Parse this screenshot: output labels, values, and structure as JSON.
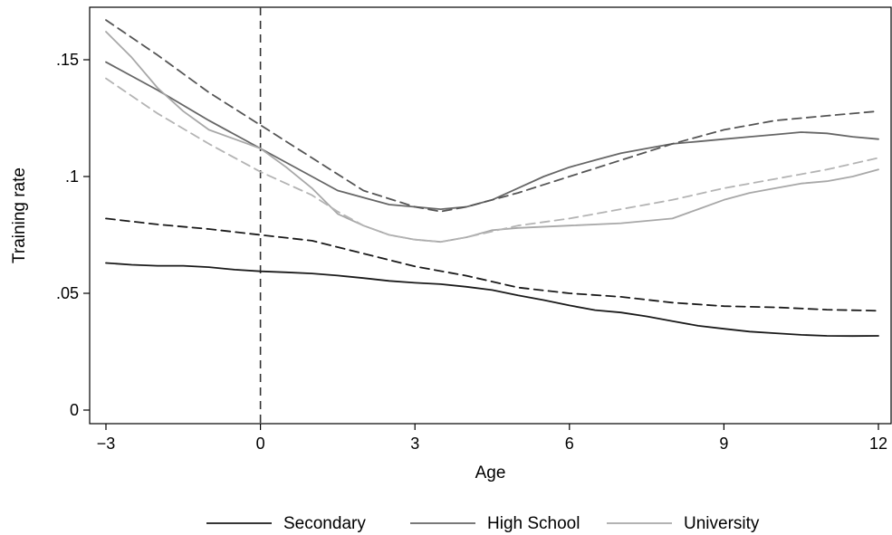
{
  "chart_data": {
    "type": "line",
    "xlabel": "Age",
    "ylabel": "Training rate",
    "xlim": [
      -3,
      12
    ],
    "ylim": [
      0,
      0.17
    ],
    "xticks": [
      -3,
      0,
      3,
      6,
      9,
      12
    ],
    "xtick_labels": [
      "−3",
      "0",
      "3",
      "6",
      "9",
      "12"
    ],
    "yticks": [
      0,
      0.05,
      0.1,
      0.15
    ],
    "ytick_labels": [
      "0",
      ".05",
      ".1",
      ".15"
    ],
    "vline_x": 0,
    "grid": false,
    "legend_position": "bottom",
    "legend": [
      "Secondary",
      "High School",
      "University"
    ],
    "series": [
      {
        "name": "Secondary",
        "color": "#1a1a1a",
        "dash": "solid",
        "x": [
          -3,
          -2.5,
          -2,
          -1.5,
          -1,
          -0.5,
          0,
          0.5,
          1,
          1.5,
          2,
          2.5,
          3,
          3.5,
          4,
          4.5,
          5,
          5.5,
          6,
          6.5,
          7,
          7.5,
          8,
          8.5,
          9,
          9.5,
          10,
          10.5,
          11,
          11.5,
          12
        ],
        "y": [
          0.063,
          0.0622,
          0.0618,
          0.0618,
          0.0612,
          0.0601,
          0.0594,
          0.059,
          0.0585,
          0.0576,
          0.0565,
          0.0553,
          0.0545,
          0.0539,
          0.0528,
          0.0514,
          0.0491,
          0.0471,
          0.0448,
          0.0428,
          0.0418,
          0.0401,
          0.0381,
          0.0361,
          0.0348,
          0.0336,
          0.0329,
          0.0322,
          0.0318,
          0.0317,
          0.0318
        ]
      },
      {
        "name": "Secondary (upper bound)",
        "color": "#1a1a1a",
        "dash": "dashed",
        "x": [
          -3,
          -2,
          -1,
          0,
          1,
          2,
          3,
          4,
          5,
          6,
          7,
          8,
          9,
          10,
          11,
          12
        ],
        "y": [
          0.082,
          0.0795,
          0.0775,
          0.075,
          0.0725,
          0.067,
          0.0615,
          0.0575,
          0.0525,
          0.05,
          0.0485,
          0.046,
          0.0445,
          0.044,
          0.043,
          0.0425
        ]
      },
      {
        "name": "High School",
        "color": "#666666",
        "dash": "solid",
        "x": [
          -3,
          -2,
          -1,
          0,
          0.5,
          1,
          1.5,
          2,
          2.5,
          3,
          3.5,
          4,
          4.5,
          5,
          5.5,
          6,
          6.5,
          7,
          7.5,
          8,
          8.5,
          9,
          9.5,
          10,
          10.5,
          11,
          11.5,
          12
        ],
        "y": [
          0.149,
          0.137,
          0.124,
          0.112,
          0.106,
          0.1,
          0.094,
          0.091,
          0.088,
          0.087,
          0.086,
          0.087,
          0.09,
          0.095,
          0.1,
          0.104,
          0.107,
          0.11,
          0.112,
          0.114,
          0.115,
          0.116,
          0.117,
          0.118,
          0.119,
          0.1185,
          0.117,
          0.116
        ]
      },
      {
        "name": "High School (upper bound)",
        "color": "#555555",
        "dash": "dashed",
        "x": [
          -3,
          -2,
          -1,
          0,
          1,
          2,
          3,
          3.5,
          4,
          5,
          6,
          7,
          8,
          9,
          10,
          11,
          12
        ],
        "y": [
          0.167,
          0.152,
          0.136,
          0.122,
          0.108,
          0.094,
          0.087,
          0.085,
          0.087,
          0.093,
          0.1,
          0.107,
          0.114,
          0.12,
          0.124,
          0.126,
          0.128
        ]
      },
      {
        "name": "University",
        "color": "#a8a8a8",
        "dash": "solid",
        "x": [
          -3,
          -2.5,
          -2,
          -1.5,
          -1,
          -0.5,
          0,
          0.5,
          1,
          1.5,
          2,
          2.5,
          3,
          3.5,
          4,
          4.5,
          5,
          6,
          7,
          8,
          8.5,
          9,
          9.5,
          10,
          10.5,
          11,
          11.5,
          12
        ],
        "y": [
          0.162,
          0.151,
          0.138,
          0.128,
          0.12,
          0.116,
          0.112,
          0.104,
          0.095,
          0.084,
          0.079,
          0.075,
          0.073,
          0.072,
          0.074,
          0.077,
          0.078,
          0.079,
          0.08,
          0.082,
          0.086,
          0.09,
          0.093,
          0.095,
          0.097,
          0.098,
          0.1,
          0.103
        ]
      },
      {
        "name": "University (upper bound)",
        "color": "#b4b4b4",
        "dash": "dashed",
        "x": [
          -3,
          -2,
          -1,
          0,
          1,
          1.5,
          2,
          2.5,
          3,
          3.5,
          4,
          5,
          6,
          7,
          8,
          9,
          10,
          11,
          12
        ],
        "y": [
          0.142,
          0.127,
          0.114,
          0.102,
          0.092,
          0.085,
          0.079,
          0.075,
          0.073,
          0.072,
          0.074,
          0.079,
          0.082,
          0.086,
          0.09,
          0.095,
          0.099,
          0.103,
          0.108
        ]
      }
    ]
  }
}
